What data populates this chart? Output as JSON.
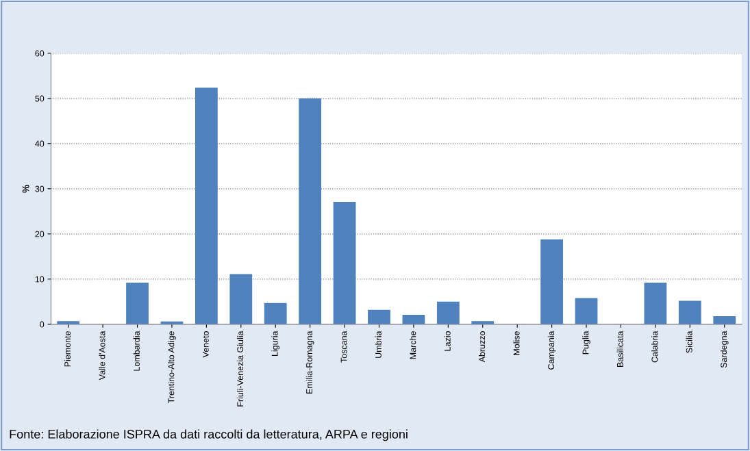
{
  "chart_data": {
    "type": "bar",
    "ylabel": "%",
    "categories": [
      "Piemonte",
      "Valle d'Aosta",
      "Lombardia",
      "Trentino-Alto Adige",
      "Veneto",
      "Friuli-Venezia Giulia",
      "Liguria",
      "Emilia-Romagna",
      "Toscana",
      "Umbria",
      "Marche",
      "Lazio",
      "Abruzzo",
      "Molise",
      "Campania",
      "Puglia",
      "Basilicata",
      "Calabria",
      "Sicilia",
      "Sardegna"
    ],
    "values": [
      0.7,
      0,
      9.2,
      0.6,
      52.4,
      11.1,
      4.7,
      50.0,
      27.1,
      3.2,
      2.1,
      5.0,
      0.7,
      0,
      18.8,
      5.8,
      0,
      9.2,
      5.2,
      1.8
    ],
    "color": "#4f81bd",
    "ylim": [
      0,
      60
    ],
    "yticks": [
      0,
      10,
      20,
      30,
      40,
      50,
      60
    ],
    "grid": "y",
    "annotations": [
      "Fonte: Elaborazione ISPRA da dati raccolti da letteratura, ARPA e regioni"
    ]
  }
}
